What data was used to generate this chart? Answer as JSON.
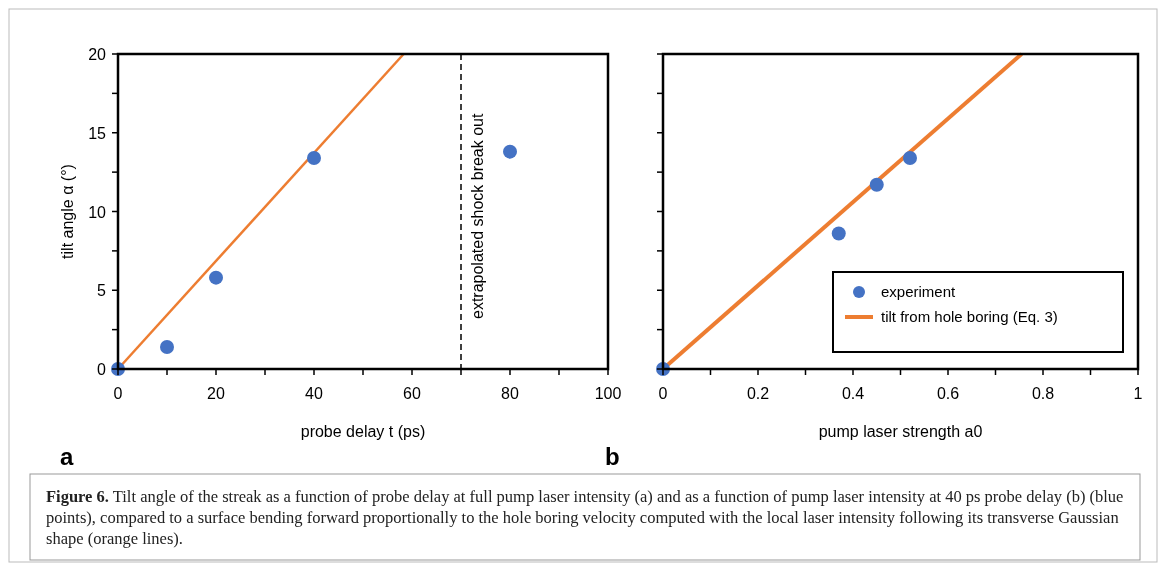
{
  "chart_data": [
    {
      "type": "scatter",
      "xlabel": "probe delay t (ps)",
      "ylabel": "tilt angle α (°)",
      "xlim": [
        0,
        100
      ],
      "ylim": [
        0,
        20
      ],
      "xticks": [
        0,
        {
          "value": 10,
          "label": null
        },
        20,
        {
          "value": 30,
          "label": null
        },
        40,
        {
          "value": 50,
          "label": null
        },
        60,
        {
          "value": 70,
          "label": null
        },
        80,
        {
          "value": 90,
          "label": null
        },
        100
      ],
      "yticks": [
        0,
        {
          "value": 2.5,
          "label": null
        },
        5,
        {
          "value": 7.5,
          "label": null
        },
        10,
        {
          "value": 12.5,
          "label": null
        },
        15,
        {
          "value": 17.5,
          "label": null
        },
        20
      ],
      "grid": false,
      "legend": false,
      "series": [
        {
          "marker": "circle",
          "color": "#4472c4",
          "x": [
            0,
            10,
            20,
            40,
            80
          ],
          "values": [
            0,
            1.4,
            5.8,
            13.4,
            13.8
          ]
        },
        {
          "type": "line",
          "color": "#ed7d31",
          "x": [
            0,
            58.3
          ],
          "values": [
            0,
            20
          ]
        }
      ],
      "ref_lines": [
        {
          "axis": "x",
          "value": 70,
          "label": "extrapolated shock break out",
          "color": "#000000",
          "line_style": "dashed"
        }
      ],
      "annotations": [
        "a",
        "Figure 6. Tilt angle of the streak as a function of probe delay at full pump laser intensity (a) and as a function of pump laser intensity at 40 ps probe delay (b) (blue points), compared to a surface bending forward proportionally to the hole boring velocity computed with the local laser intensity following its transverse Gaussian shape (orange lines)."
      ]
    },
    {
      "type": "scatter",
      "xlabel": "pump laser strength a0",
      "xlim": [
        0,
        1
      ],
      "ylim": [
        0,
        20
      ],
      "tick_labels": "x",
      "xticks": [
        0,
        {
          "value": 0.1,
          "label": null
        },
        0.2,
        {
          "value": 0.3,
          "label": null
        },
        0.4,
        {
          "value": 0.5,
          "label": null
        },
        0.6,
        {
          "value": 0.7,
          "label": null
        },
        0.8,
        {
          "value": 0.9,
          "label": null
        },
        1
      ],
      "yticks": [
        0,
        {
          "value": 2.5,
          "label": null
        },
        5,
        {
          "value": 7.5,
          "label": null
        },
        10,
        {
          "value": 12.5,
          "label": null
        },
        15,
        {
          "value": 17.5,
          "label": null
        },
        20
      ],
      "grid": false,
      "legend": "bottom right",
      "series": [
        {
          "marker": "circle",
          "name": "experiment",
          "color": "#4472c4",
          "x": [
            0,
            0.37,
            0.45,
            0.52
          ],
          "values": [
            0,
            8.6,
            11.7,
            13.4
          ]
        },
        {
          "type": "line",
          "name": "tilt from hole boring (Eq. 3)",
          "color": "#ed7d31",
          "x": [
            0,
            0.755
          ],
          "values": [
            0,
            20
          ]
        }
      ],
      "annotations": [
        "b"
      ]
    }
  ]
}
